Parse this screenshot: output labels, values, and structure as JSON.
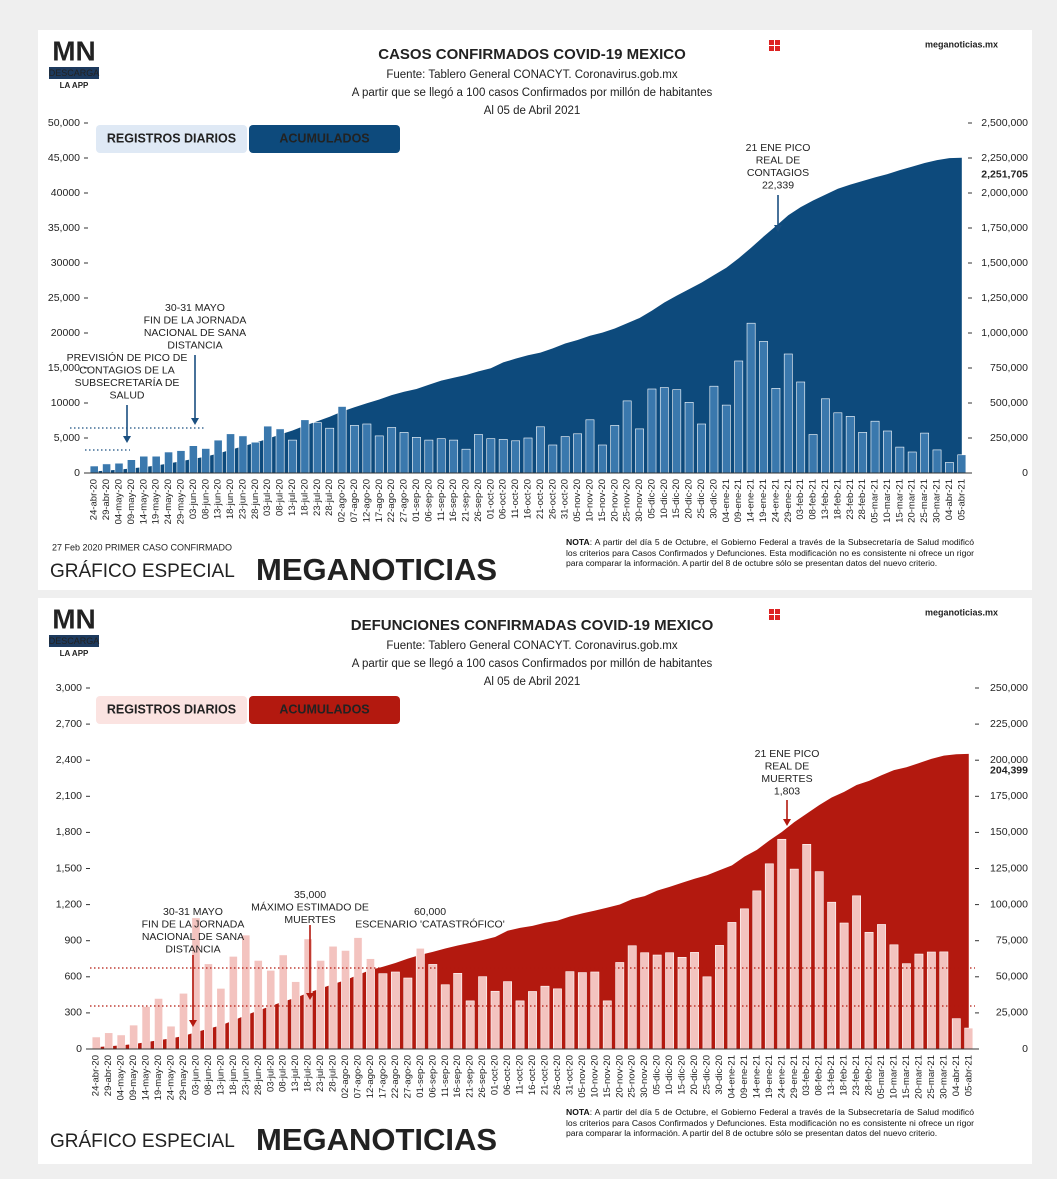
{
  "panels": [
    {
      "logo": "MN",
      "logo_tag": "DESCARGA",
      "logo_app": "LA APP",
      "site": "meganoticias.mx",
      "first_case": "27 Feb 2020 PRIMER CASO CONFIRMADO",
      "brand_prefix": "GRÁFICO ESPECIAL",
      "brand": "MEGANOTICIAS",
      "note_label": "NOTA",
      "note_text": ": A partir del día 5 de Octubre, el Gobierno Federal a través de la Subsecretaría de Salud modificó los criterios para Casos Confirmados y Defunciones. Esta modificación no es consistente ni ofrece un rigor para comparar la información. A partir del 8 de octubre sólo se presentan datos del nuevo criterio."
    },
    {
      "logo": "MN",
      "logo_tag": "DESCARGA",
      "logo_app": "LA APP",
      "site": "meganoticias.mx",
      "brand_prefix": "GRÁFICO ESPECIAL",
      "brand": "MEGANOTICIAS",
      "note_label": "NOTA",
      "note_text": ": A partir del día 5 de Octubre, el Gobierno Federal a través de la Subsecretaría de Salud modificó los criterios para Casos Confirmados y Defunciones. Esta modificación no es consistente ni ofrece un rigor para comparar la información. A partir del 8 de octubre sólo se presentan datos del nuevo criterio."
    }
  ],
  "chart_data": [
    {
      "type": "bar",
      "title": "CASOS CONFIRMADOS COVID-19 MEXICO",
      "subtitle": [
        "Fuente: Tablero General CONACYT. Coronavirus.gob.mx",
        "A partir que se llegó a 100 casos Confirmados por millón de habitantes",
        "Al 05 de Abril 2021"
      ],
      "categories": [
        "24-abr-20",
        "29-abr-20",
        "04-may-20",
        "09-may-20",
        "14-may-20",
        "19-may-20",
        "24-may-20",
        "29-may-20",
        "03-jun-20",
        "08-jun-20",
        "13-jun-20",
        "18-jun-20",
        "23-jun-20",
        "28-jun-20",
        "03-jul-20",
        "08-jul-20",
        "13-jul-20",
        "18-jul-20",
        "23-jul-20",
        "28-jul-20",
        "02-ago-20",
        "07-ago-20",
        "12-ago-20",
        "17-ago-20",
        "22-ago-20",
        "27-ago-20",
        "01-sep-20",
        "06-sep-20",
        "11-sep-20",
        "16-sep-20",
        "21-sep-20",
        "26-sep-20",
        "01-oct-20",
        "06-oct-20",
        "11-oct-20",
        "16-oct-20",
        "21-oct-20",
        "26-oct-20",
        "31-oct-20",
        "05-nov-20",
        "10-nov-20",
        "15-nov-20",
        "20-nov-20",
        "25-nov-20",
        "30-nov-20",
        "05-dic-20",
        "10-dic-20",
        "15-dic-20",
        "20-dic-20",
        "25-dic-20",
        "30-dic-20",
        "04-ene-21",
        "09-ene-21",
        "14-ene-21",
        "19-ene-21",
        "24-ene-21",
        "29-ene-21",
        "03-feb-21",
        "08-feb-21",
        "13-feb-21",
        "18-feb-21",
        "23-feb-21",
        "28-feb-21",
        "05-mar-21",
        "10-mar-21",
        "15-mar-21",
        "20-mar-21",
        "25-mar-21",
        "30-mar-21",
        "04-abr-21",
        "05-abr-21"
      ],
      "series": [
        {
          "name": "REGISTROS DIARIOS",
          "color": "#3a78ad",
          "values": [
            1000,
            1300,
            1400,
            1900,
            2400,
            2400,
            3000,
            3200,
            3900,
            3500,
            4700,
            5600,
            5300,
            4400,
            6700,
            6300,
            4700,
            7600,
            7200,
            6400,
            9500,
            6800,
            7000,
            5300,
            6500,
            5800,
            5100,
            4700,
            4900,
            4700,
            3400,
            5500,
            4900,
            4800,
            4600,
            5000,
            6600,
            4000,
            5200,
            5600,
            7600,
            4000,
            6800,
            10300,
            6300,
            12000,
            12200,
            11900,
            10100,
            7000,
            12400,
            9700,
            16000,
            21400,
            18800,
            12100,
            17000,
            13000,
            5500,
            10600,
            8600,
            8100,
            5800,
            7400,
            6000,
            3700,
            3000,
            5700,
            3300,
            1500,
            2600
          ]
        },
        {
          "name": "ACUMULADOS",
          "color": "#0d4a7c",
          "type": "area",
          "axis": "y2",
          "values": [
            12000,
            17000,
            24000,
            33000,
            42000,
            54000,
            68000,
            84000,
            101000,
            117000,
            139000,
            165000,
            191000,
            216000,
            245000,
            275000,
            304000,
            338000,
            370000,
            402000,
            439000,
            470000,
            498000,
            525000,
            556000,
            580000,
            600000,
            630000,
            660000,
            680000,
            700000,
            726000,
            748000,
            790000,
            817000,
            841000,
            860000,
            890000,
            925000,
            950000,
            980000,
            1003000,
            1032000,
            1070000,
            1107000,
            1160000,
            1218000,
            1267000,
            1313000,
            1360000,
            1413000,
            1466000,
            1534000,
            1609000,
            1688000,
            1763000,
            1841000,
            1899000,
            1946000,
            1988000,
            2030000,
            2060000,
            2086000,
            2112000,
            2135000,
            2163000,
            2188000,
            2214000,
            2235000,
            2249000,
            2251705
          ]
        }
      ],
      "ylim": [
        0,
        50000
      ],
      "yticks": [
        0,
        {
          "value": 5000,
          "label": "5,000"
        },
        {
          "value": 10000,
          "label": "10000"
        },
        {
          "value": 15000,
          "label": "15,000"
        },
        {
          "value": 20000,
          "label": "20000"
        },
        {
          "value": 25000,
          "label": "25,000"
        },
        {
          "value": 30000,
          "label": "30000"
        },
        {
          "value": 35000,
          "label": "35,000"
        },
        {
          "value": 40000,
          "label": "40000"
        },
        {
          "value": 45000,
          "label": "45,000"
        },
        {
          "value": 50000,
          "label": "50,000"
        }
      ],
      "y2lim": [
        0,
        2500000
      ],
      "y2ticks": [
        0,
        {
          "value": 250000,
          "label": "250,000"
        },
        {
          "value": 500000,
          "label": "500,000"
        },
        {
          "value": 750000,
          "label": "750,000"
        },
        {
          "value": 1000000,
          "label": "1,000,000"
        },
        {
          "value": 1250000,
          "label": "1,250,000"
        },
        {
          "value": 1500000,
          "label": "1,500,000"
        },
        {
          "value": 1750000,
          "label": "1,750,000"
        },
        {
          "value": 2000000,
          "label": "2,000,000"
        },
        {
          "value": 2250000,
          "label": "2,250,000"
        },
        {
          "value": 2500000,
          "label": "2,500,000"
        }
      ],
      "y2_end_label": "2,251,705",
      "annotation_color": "#1a4f80",
      "annotations": [
        {
          "lines": [
            "21 ENE PICO",
            "REAL DE",
            "CONTAGIOS",
            "22,339"
          ]
        },
        {
          "lines": [
            "30-31 MAYO",
            "FIN DE LA JORNADA",
            "NACIONAL DE SANA",
            "DISTANCIA"
          ]
        },
        {
          "lines": [
            "PREVISIÓN DE PICO DE",
            "CONTAGIOS DE LA",
            "SUBSECRETARÍA DE",
            "SALUD"
          ]
        }
      ]
    },
    {
      "type": "bar",
      "title": "DEFUNCIONES CONFIRMADAS COVID-19 MEXICO",
      "subtitle": [
        "Fuente: Tablero General CONACYT. Coronavirus.gob.mx",
        "A partir que se llegó a 100 casos Confirmados por millón de habitantes",
        "Al 05 de Abril 2021"
      ],
      "categories": [
        "24-abr-20",
        "29-abr-20",
        "04-may-20",
        "09-may-20",
        "14-may-20",
        "19-may-20",
        "24-may-20",
        "29-may-20",
        "03-jun-20",
        "08-jun-20",
        "13-jun-20",
        "18-jun-20",
        "23-jun-20",
        "28-jun-20",
        "03-jul-20",
        "08-jul-20",
        "13-jul-20",
        "18-jul-20",
        "23-jul-20",
        "28-jul-20",
        "02-ago-20",
        "07-ago-20",
        "12-ago-20",
        "17-ago-20",
        "22-ago-20",
        "27-ago-20",
        "01-sep-20",
        "06-sep-20",
        "11-sep-20",
        "16-sep-20",
        "21-sep-20",
        "26-sep-20",
        "01-oct-20",
        "06-oct-20",
        "11-oct-20",
        "16-oct-20",
        "21-oct-20",
        "26-oct-20",
        "31-oct-20",
        "05-nov-20",
        "10-nov-20",
        "15-nov-20",
        "20-nov-20",
        "25-nov-20",
        "30-nov-20",
        "05-dic-20",
        "10-dic-20",
        "15-dic-20",
        "20-dic-20",
        "25-dic-20",
        "30-dic-20",
        "04-ene-21",
        "09-ene-21",
        "14-ene-21",
        "19-ene-21",
        "24-ene-21",
        "29-ene-21",
        "03-feb-21",
        "08-feb-21",
        "13-feb-21",
        "18-feb-21",
        "23-feb-21",
        "28-feb-21",
        "05-mar-21",
        "10-mar-21",
        "15-mar-21",
        "20-mar-21",
        "25-mar-21",
        "30-mar-21",
        "04-abr-21",
        "05-abr-21"
      ],
      "series": [
        {
          "name": "REGISTROS DIARIOS",
          "color": "#f3c3bf",
          "values": [
            100,
            135,
            117,
            199,
            353,
            420,
            190,
            463,
            1090,
            708,
            504,
            770,
            947,
            736,
            654,
            782,
            560,
            915,
            736,
            854,
            819,
            926,
            751,
            626,
            640,
            590,
            837,
            703,
            534,
            629,
            400,
            601,
            480,
            560,
            400,
            478,
            522,
            500,
            643,
            635,
            640,
            400,
            719,
            858,
            800,
            781,
            800,
            762,
            803,
            600,
            861,
            1052,
            1165,
            1314,
            1539,
            1743,
            1495,
            1701,
            1474,
            1220,
            1047,
            1273,
            970,
            1035,
            866,
            709,
            789,
            806,
            807,
            252,
            174
          ]
        },
        {
          "name": "ACUMULADOS",
          "color": "#b3190f",
          "type": "area",
          "axis": "y2",
          "values": [
            1300,
            1900,
            2500,
            3400,
            4800,
            6100,
            7400,
            9000,
            11700,
            14000,
            16400,
            19700,
            23400,
            26600,
            29800,
            32800,
            35500,
            38900,
            41900,
            44900,
            47700,
            51300,
            54700,
            57000,
            59600,
            62600,
            65200,
            67300,
            69600,
            71700,
            73500,
            75400,
            77600,
            81900,
            83900,
            85300,
            87400,
            88900,
            91800,
            93900,
            95800,
            97900,
            100100,
            103800,
            105900,
            109700,
            112300,
            115100,
            117900,
            120300,
            123800,
            127200,
            133200,
            137900,
            144400,
            150300,
            157100,
            163000,
            168900,
            174200,
            178100,
            182800,
            185700,
            189600,
            193100,
            195100,
            198000,
            200900,
            203200,
            204150,
            204399
          ]
        }
      ],
      "ylim": [
        0,
        3000
      ],
      "yticks": [
        0,
        300,
        600,
        900,
        {
          "value": 1200,
          "label": "1,200"
        },
        {
          "value": 1500,
          "label": "1,500"
        },
        {
          "value": 1800,
          "label": "1,800"
        },
        {
          "value": 2100,
          "label": "2,100"
        },
        {
          "value": 2400,
          "label": "2,400"
        },
        {
          "value": 2700,
          "label": "2,700"
        },
        {
          "value": 3000,
          "label": "3,000"
        }
      ],
      "y2lim": [
        0,
        250000
      ],
      "y2ticks": [
        0,
        {
          "value": 25000,
          "label": "25,000"
        },
        {
          "value": 50000,
          "label": "50,000"
        },
        {
          "value": 75000,
          "label": "75,000"
        },
        {
          "value": 100000,
          "label": "100,000"
        },
        {
          "value": 125000,
          "label": "125,000"
        },
        {
          "value": 150000,
          "label": "150,000"
        },
        {
          "value": 175000,
          "label": "175,000"
        },
        {
          "value": 200000,
          "label": "200,000"
        },
        {
          "value": 225000,
          "label": "225,000"
        },
        {
          "value": 250000,
          "label": "250,000"
        }
      ],
      "y2_end_label": "204,399",
      "annotation_color": "#b3190f",
      "annotations": [
        {
          "lines": [
            "30-31 MAYO",
            "FIN DE LA JORNADA",
            "NACIONAL DE SANA",
            "DISTANCIA"
          ]
        },
        {
          "lines": [
            "35,000",
            "MÁXIMO ESTIMADO DE",
            "MUERTES"
          ]
        },
        {
          "lines": [
            "60,000",
            "ESCENARIO 'CATASTRÓFICO'"
          ]
        },
        {
          "lines": [
            "21 ENE PICO",
            "REAL DE",
            "MUERTES",
            "1,803"
          ]
        }
      ]
    }
  ]
}
